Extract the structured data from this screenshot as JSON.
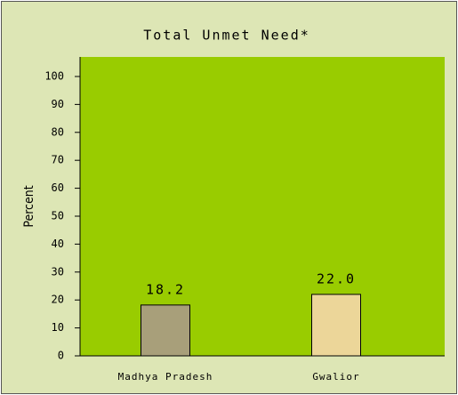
{
  "chart_data": {
    "type": "bar",
    "title": "Total Unmet Need*",
    "y_label": "Percent",
    "categories": [
      "Madhya Pradesh",
      "Gwalior"
    ],
    "values": [
      18.2,
      22.0
    ],
    "value_labels": [
      "18.2",
      "22.0"
    ],
    "colors": [
      "#a89f7a",
      "#ecd699"
    ],
    "ylim": [
      0,
      107
    ],
    "yticks": [
      0,
      10,
      20,
      30,
      40,
      50,
      60,
      70,
      80,
      90,
      100
    ],
    "background": "#dde6b5",
    "plot_color": "#99cc00"
  }
}
